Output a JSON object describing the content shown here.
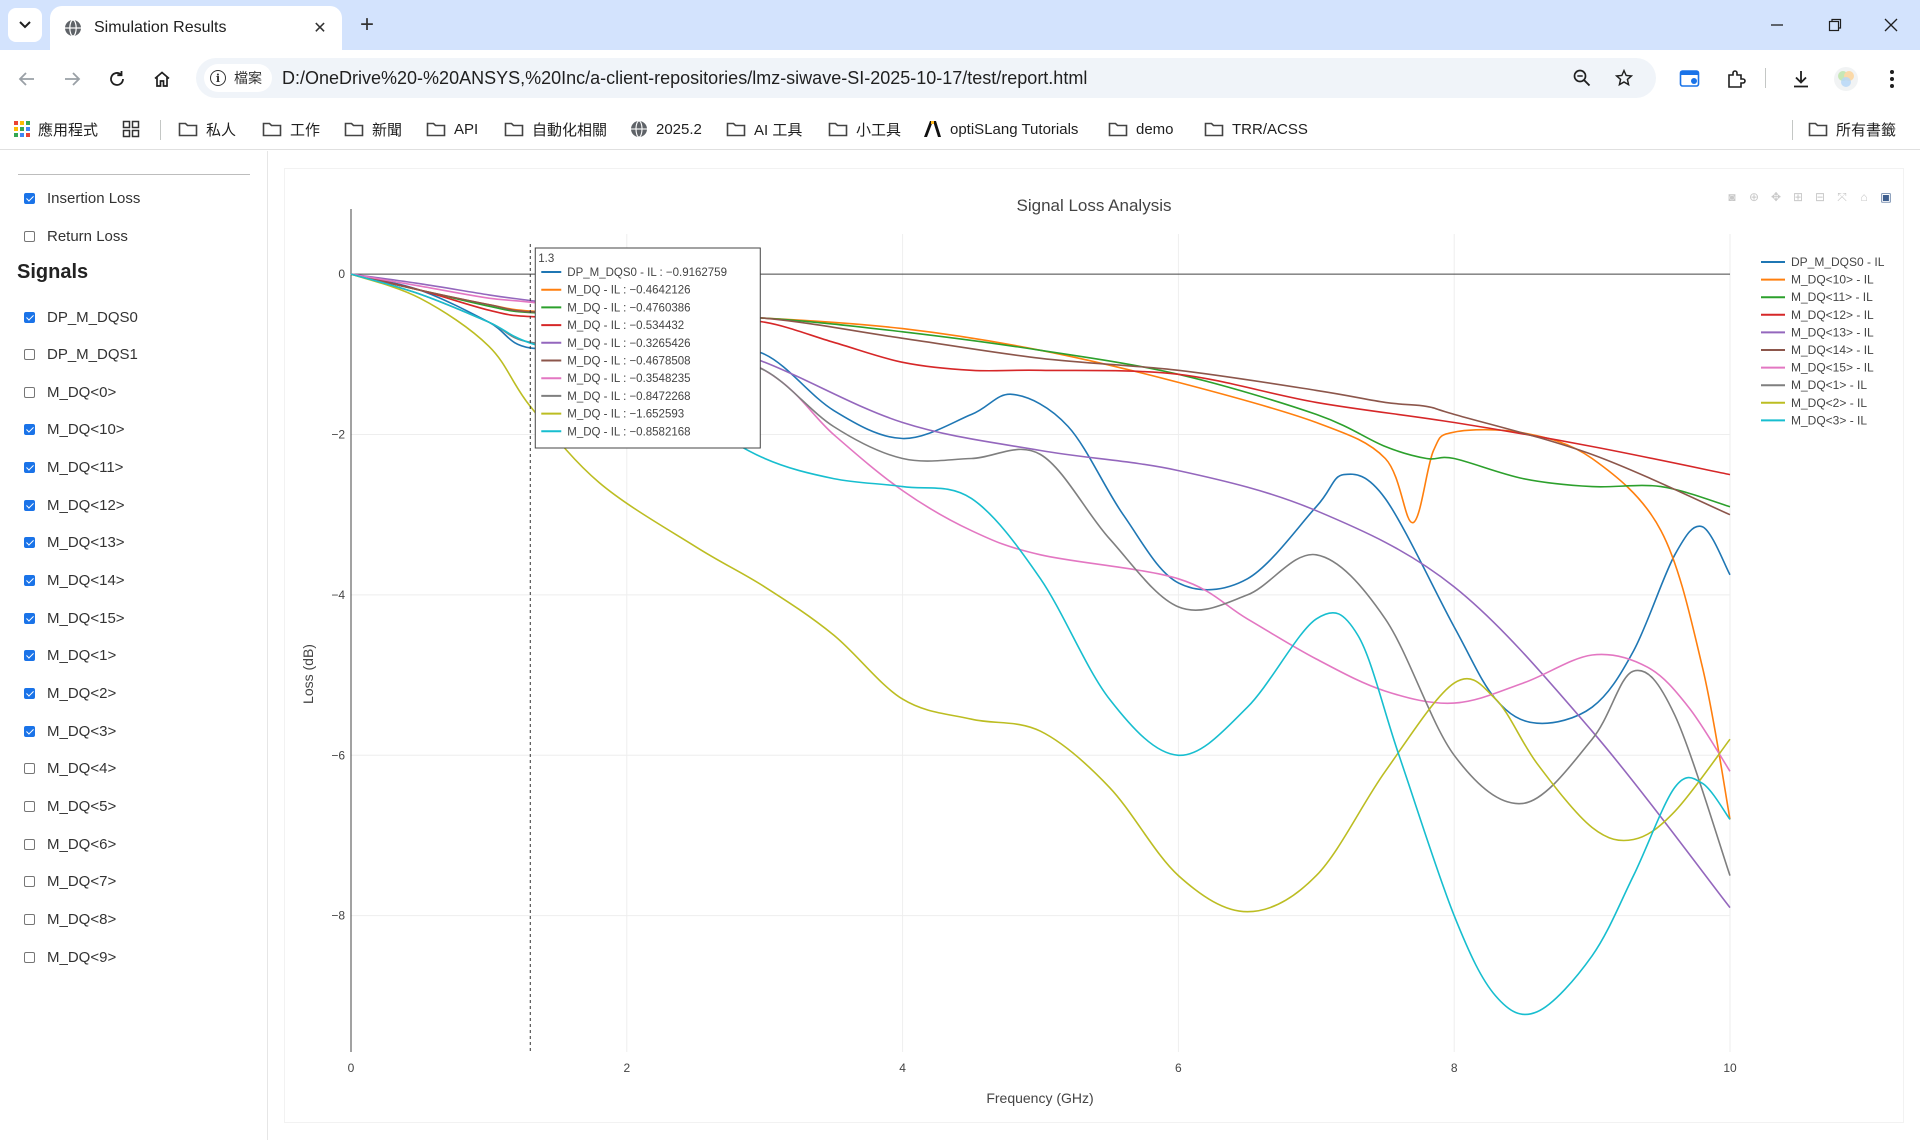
{
  "browser": {
    "tab_title": "Simulation Results",
    "site_chip_label": "檔案",
    "url": "D:/OneDrive%20-%20ANSYS,%20Inc/a-client-repositories/lmz-siwave-SI-2025-10-17/test/report.html",
    "bookmarks": [
      {
        "label": "應用程式",
        "icon": "apps-grid-icon"
      },
      {
        "label": "",
        "icon": "tab-groups-icon"
      },
      {
        "label": "私人",
        "icon": "folder-icon"
      },
      {
        "label": "工作",
        "icon": "folder-icon"
      },
      {
        "label": "新聞",
        "icon": "folder-icon"
      },
      {
        "label": "API",
        "icon": "folder-icon"
      },
      {
        "label": "自動化相關",
        "icon": "folder-icon"
      },
      {
        "label": "2025.2",
        "icon": "globe-icon"
      },
      {
        "label": "AI 工具",
        "icon": "folder-icon"
      },
      {
        "label": "小工具",
        "icon": "folder-icon"
      },
      {
        "label": "optiSLang Tutorials",
        "icon": "ansys-logo-icon"
      },
      {
        "label": "demo",
        "icon": "folder-icon"
      },
      {
        "label": "TRR/ACSS",
        "icon": "folder-icon"
      },
      {
        "label": "所有書籤",
        "icon": "folder-icon"
      }
    ]
  },
  "sidebar": {
    "loss_types": [
      {
        "label": "Insertion Loss",
        "checked": true
      },
      {
        "label": "Return Loss",
        "checked": false
      }
    ],
    "signals_heading": "Signals",
    "signals": [
      {
        "label": "DP_M_DQS0",
        "checked": true
      },
      {
        "label": "DP_M_DQS1",
        "checked": false
      },
      {
        "label": "M_DQ<0>",
        "checked": false
      },
      {
        "label": "M_DQ<10>",
        "checked": true
      },
      {
        "label": "M_DQ<11>",
        "checked": true
      },
      {
        "label": "M_DQ<12>",
        "checked": true
      },
      {
        "label": "M_DQ<13>",
        "checked": true
      },
      {
        "label": "M_DQ<14>",
        "checked": true
      },
      {
        "label": "M_DQ<15>",
        "checked": true
      },
      {
        "label": "M_DQ<1>",
        "checked": true
      },
      {
        "label": "M_DQ<2>",
        "checked": true
      },
      {
        "label": "M_DQ<3>",
        "checked": true
      },
      {
        "label": "M_DQ<4>",
        "checked": false
      },
      {
        "label": "M_DQ<5>",
        "checked": false
      },
      {
        "label": "M_DQ<6>",
        "checked": false
      },
      {
        "label": "M_DQ<7>",
        "checked": false
      },
      {
        "label": "M_DQ<8>",
        "checked": false
      },
      {
        "label": "M_DQ<9>",
        "checked": false
      }
    ]
  },
  "chart_data": {
    "type": "line",
    "title": "Signal Loss Analysis",
    "xlabel": "Frequency (GHz)",
    "ylabel": "Loss (dB)",
    "xlim": [
      0,
      10
    ],
    "ylim": [
      -9.7,
      0.5
    ],
    "xticks": [
      0,
      2,
      4,
      6,
      8,
      10
    ],
    "yticks": [
      0,
      -2,
      -4,
      -6,
      -8
    ],
    "grid": true,
    "legend_position": "right",
    "hover": {
      "x_label": "1.3",
      "x": 1.3,
      "entries": [
        {
          "text": "DP_M_DQS0 - IL : −0.9162759",
          "color": "#1f77b4"
        },
        {
          "text": "M_DQ - IL : −0.4642126",
          "color": "#ff7f0e"
        },
        {
          "text": "M_DQ - IL : −0.4760386",
          "color": "#2ca02c"
        },
        {
          "text": "M_DQ - IL : −0.534432",
          "color": "#d62728"
        },
        {
          "text": "M_DQ - IL : −0.3265426",
          "color": "#9467bd"
        },
        {
          "text": "M_DQ - IL : −0.4678508",
          "color": "#8c564b"
        },
        {
          "text": "M_DQ - IL : −0.3548235",
          "color": "#e377c2"
        },
        {
          "text": "M_DQ - IL : −0.8472268",
          "color": "#7f7f7f"
        },
        {
          "text": "M_DQ - IL : −1.652593",
          "color": "#bcbd22"
        },
        {
          "text": "M_DQ - IL : −0.8582168",
          "color": "#17becf"
        }
      ]
    },
    "series": [
      {
        "name": "DP_M_DQS0 - IL",
        "color": "#1f77b4",
        "x": [
          0,
          0.5,
          1,
          1.3,
          2,
          2.5,
          3,
          3.5,
          4,
          4.5,
          4.8,
          5.2,
          5.6,
          6,
          6.5,
          7,
          7.2,
          7.5,
          8,
          8.3,
          8.6,
          9,
          9.3,
          9.6,
          9.8,
          10
        ],
        "y": [
          0,
          -0.2,
          -0.6,
          -0.92,
          -0.85,
          -0.9,
          -1.0,
          -1.7,
          -2.05,
          -1.75,
          -1.5,
          -1.9,
          -3.0,
          -3.85,
          -3.8,
          -2.9,
          -2.5,
          -2.8,
          -4.4,
          -5.3,
          -5.6,
          -5.4,
          -4.7,
          -3.5,
          -3.15,
          -3.75
        ]
      },
      {
        "name": "M_DQ<10> - IL",
        "color": "#ff7f0e",
        "x": [
          0,
          0.5,
          1,
          1.3,
          2,
          3,
          4,
          5,
          6,
          7,
          7.5,
          7.7,
          7.85,
          8,
          8.5,
          9,
          9.5,
          9.8,
          10
        ],
        "y": [
          0,
          -0.2,
          -0.38,
          -0.46,
          -0.5,
          -0.55,
          -0.68,
          -0.95,
          -1.35,
          -1.85,
          -2.3,
          -3.1,
          -2.2,
          -1.97,
          -1.98,
          -2.3,
          -3.2,
          -4.9,
          -6.8
        ]
      },
      {
        "name": "M_DQ<11> - IL",
        "color": "#2ca02c",
        "x": [
          0,
          0.5,
          1,
          1.3,
          2,
          3,
          4,
          5,
          6,
          7,
          7.5,
          7.8,
          8,
          8.5,
          9,
          9.5,
          10
        ],
        "y": [
          0,
          -0.2,
          -0.4,
          -0.48,
          -0.5,
          -0.55,
          -0.72,
          -0.95,
          -1.25,
          -1.75,
          -2.15,
          -2.3,
          -2.3,
          -2.55,
          -2.65,
          -2.65,
          -2.9
        ]
      },
      {
        "name": "M_DQ<12> - IL",
        "color": "#d62728",
        "x": [
          0,
          0.5,
          1,
          1.3,
          2,
          2.5,
          3,
          3.5,
          4,
          4.5,
          5,
          6,
          7,
          8,
          9,
          10
        ],
        "y": [
          0,
          -0.2,
          -0.45,
          -0.53,
          -0.55,
          -0.55,
          -0.6,
          -0.85,
          -1.1,
          -1.2,
          -1.2,
          -1.25,
          -1.6,
          -1.85,
          -2.15,
          -2.5
        ]
      },
      {
        "name": "M_DQ<13> - IL",
        "color": "#9467bd",
        "x": [
          0,
          0.5,
          1,
          1.3,
          2,
          3,
          4,
          5,
          6,
          7,
          8,
          9,
          10
        ],
        "y": [
          0,
          -0.12,
          -0.26,
          -0.33,
          -0.5,
          -1.1,
          -1.85,
          -2.2,
          -2.45,
          -2.95,
          -3.9,
          -5.7,
          -7.9
        ]
      },
      {
        "name": "M_DQ<14> - IL",
        "color": "#8c564b",
        "x": [
          0,
          0.5,
          1,
          1.3,
          2,
          3,
          4,
          5,
          6,
          7,
          7.5,
          7.8,
          8,
          9,
          10
        ],
        "y": [
          0,
          -0.2,
          -0.38,
          -0.47,
          -0.48,
          -0.55,
          -0.8,
          -1.05,
          -1.2,
          -1.45,
          -1.6,
          -1.65,
          -1.75,
          -2.25,
          -3.0
        ]
      },
      {
        "name": "M_DQ<15> - IL",
        "color": "#e377c2",
        "x": [
          0,
          0.5,
          1,
          1.3,
          2,
          3,
          3.5,
          4,
          4.5,
          5,
          6,
          6.5,
          7,
          7.5,
          8,
          8.5,
          9,
          9.4,
          9.7,
          10
        ],
        "y": [
          0,
          -0.15,
          -0.3,
          -0.35,
          -0.5,
          -1.2,
          -2.0,
          -2.7,
          -3.2,
          -3.5,
          -3.8,
          -4.3,
          -4.8,
          -5.2,
          -5.35,
          -5.1,
          -4.75,
          -4.9,
          -5.4,
          -6.2
        ]
      },
      {
        "name": "M_DQ<1> - IL",
        "color": "#7f7f7f",
        "x": [
          0,
          0.5,
          1,
          1.3,
          2,
          2.5,
          3,
          3.5,
          4,
          4.5,
          5,
          5.5,
          6,
          6.5,
          7,
          7.5,
          8,
          8.5,
          9,
          9.3,
          9.6,
          10
        ],
        "y": [
          0,
          -0.25,
          -0.6,
          -0.85,
          -0.9,
          -1.0,
          -1.2,
          -1.9,
          -2.3,
          -2.3,
          -2.25,
          -3.3,
          -4.15,
          -4.0,
          -3.5,
          -4.3,
          -6.0,
          -6.6,
          -5.8,
          -4.95,
          -5.5,
          -7.5
        ]
      },
      {
        "name": "M_DQ<2> - IL",
        "color": "#bcbd22",
        "x": [
          0,
          0.5,
          1,
          1.3,
          1.8,
          2.5,
          3,
          3.5,
          4,
          4.5,
          5,
          5.5,
          6,
          6.5,
          7,
          7.5,
          8,
          8.3,
          8.6,
          9,
          9.3,
          9.6,
          10
        ],
        "y": [
          0,
          -0.3,
          -0.9,
          -1.65,
          -2.6,
          -3.4,
          -3.9,
          -4.5,
          -5.3,
          -5.55,
          -5.7,
          -6.4,
          -7.5,
          -7.95,
          -7.5,
          -6.2,
          -5.1,
          -5.3,
          -6.1,
          -6.9,
          -7.05,
          -6.7,
          -5.8
        ]
      },
      {
        "name": "M_DQ<3> - IL",
        "color": "#17becf",
        "x": [
          0,
          0.5,
          1,
          1.3,
          2,
          2.5,
          3,
          3.5,
          4,
          4.5,
          5,
          5.5,
          6,
          6.5,
          7,
          7.3,
          7.6,
          8,
          8.3,
          8.6,
          9,
          9.3,
          9.6,
          9.8,
          10
        ],
        "y": [
          0,
          -0.25,
          -0.6,
          -0.86,
          -1.2,
          -1.8,
          -2.3,
          -2.55,
          -2.65,
          -2.8,
          -3.8,
          -5.3,
          -6.0,
          -5.4,
          -4.3,
          -4.5,
          -6.0,
          -8.0,
          -9.0,
          -9.2,
          -8.5,
          -7.5,
          -6.4,
          -6.35,
          -6.8
        ]
      }
    ]
  }
}
